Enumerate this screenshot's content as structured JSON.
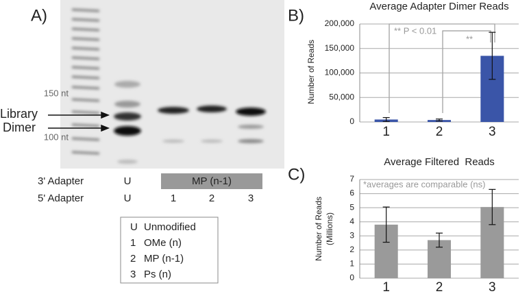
{
  "panel_labels": [
    "A)",
    "B)",
    "C)"
  ],
  "gel": {
    "size_markers": [
      "150 nt",
      "100 nt"
    ],
    "band_labels": [
      "Library",
      "Dimer"
    ],
    "rows": [
      {
        "label": "3' Adapter",
        "lanes": [
          "U",
          "MP (n-1)"
        ]
      },
      {
        "label": "5' Adapter",
        "lanes": [
          "U",
          "1",
          "2",
          "3"
        ]
      }
    ],
    "legend": [
      [
        "U",
        "Unmodified"
      ],
      [
        "1",
        "OMe (n)"
      ],
      [
        "2",
        "MP (n-1)"
      ],
      [
        "3",
        "Ps (n)"
      ]
    ]
  },
  "chart_data": [
    {
      "type": "bar",
      "title": "Average Adapter Dimer Reads",
      "y_label": "Number of Reads",
      "categories": [
        "1",
        "2",
        "3"
      ],
      "values": [
        5000,
        4000,
        135000
      ],
      "errors": [
        4000,
        2000,
        48000
      ],
      "color": "#3a55a8",
      "ylim": [
        0,
        200000
      ],
      "yticks": [
        0,
        {
          "value": 50000,
          "label": "50,000"
        },
        {
          "value": 100000,
          "label": "100,000"
        },
        {
          "value": 150000,
          "label": "150,000"
        },
        {
          "value": 200000,
          "label": "200,000"
        }
      ],
      "grid": true,
      "annotations": [
        "** P < 0.01",
        "**"
      ]
    },
    {
      "type": "bar",
      "title": "Average Filtered  Reads",
      "y_label": [
        "Number of Reads",
        "(Millions)"
      ],
      "categories": [
        "1",
        "2",
        "3"
      ],
      "values": [
        3.8,
        2.7,
        5.05
      ],
      "errors": [
        1.25,
        0.5,
        1.25
      ],
      "color": "#9a9a9a",
      "ylim": [
        0,
        7
      ],
      "yticks": [
        0,
        1,
        2,
        3,
        4,
        5,
        6,
        7
      ],
      "grid": true,
      "annotations": [
        "*averages are comparable (ns)"
      ]
    }
  ]
}
